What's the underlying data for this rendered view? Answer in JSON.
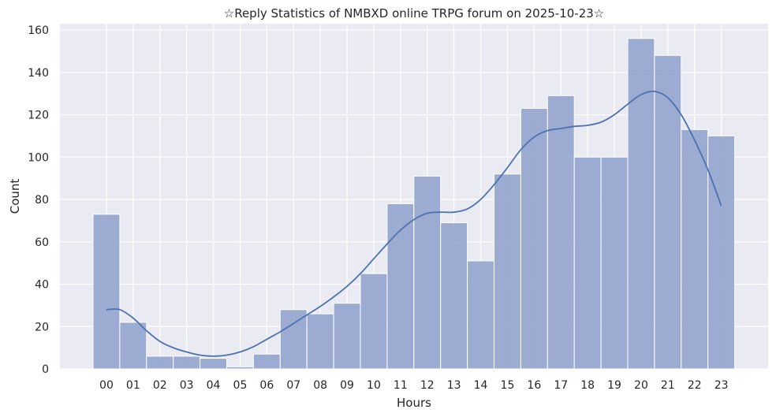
{
  "chart_data": {
    "type": "bar",
    "title": "☆Reply Statistics of NMBXD online TRPG forum on 2025-10-23☆",
    "xlabel": "Hours",
    "ylabel": "Count",
    "categories": [
      "00",
      "01",
      "02",
      "03",
      "04",
      "05",
      "06",
      "07",
      "08",
      "09",
      "10",
      "11",
      "12",
      "13",
      "14",
      "15",
      "16",
      "17",
      "18",
      "19",
      "20",
      "21",
      "22",
      "23"
    ],
    "values": [
      73,
      22,
      6,
      6,
      5,
      1,
      7,
      28,
      26,
      31,
      45,
      78,
      91,
      69,
      51,
      92,
      123,
      129,
      100,
      100,
      156,
      148,
      113,
      110
    ],
    "ylim": [
      0,
      163
    ],
    "yticks": [
      0,
      20,
      40,
      60,
      80,
      100,
      120,
      140,
      160
    ],
    "kde": {
      "x": [
        0,
        0.5,
        1,
        1.5,
        2,
        2.5,
        3,
        3.5,
        4,
        4.5,
        5,
        5.5,
        6,
        6.5,
        7,
        7.5,
        8,
        8.5,
        9,
        9.5,
        10,
        10.5,
        11,
        11.5,
        12,
        12.5,
        13,
        13.5,
        14,
        14.5,
        15,
        15.5,
        16,
        16.5,
        17,
        17.5,
        18,
        18.5,
        19,
        19.5,
        20,
        20.5,
        21,
        21.5,
        22,
        22.5,
        23
      ],
      "y": [
        28,
        28,
        24,
        18,
        13,
        10,
        8,
        6.5,
        6,
        6.5,
        8,
        10.5,
        14,
        17.5,
        21.5,
        25.5,
        29.5,
        34,
        39,
        45,
        52,
        59,
        65.5,
        70.5,
        73.5,
        74,
        74,
        75.5,
        80,
        87,
        95,
        103.5,
        109.5,
        112.5,
        113.5,
        114.5,
        115,
        116.5,
        120,
        125,
        129.5,
        131,
        128,
        120,
        108,
        94,
        77
      ]
    },
    "bar_color": "#8da0cb",
    "line_color": "#4c72b0",
    "grid": true,
    "background": "#eaeaf2"
  }
}
